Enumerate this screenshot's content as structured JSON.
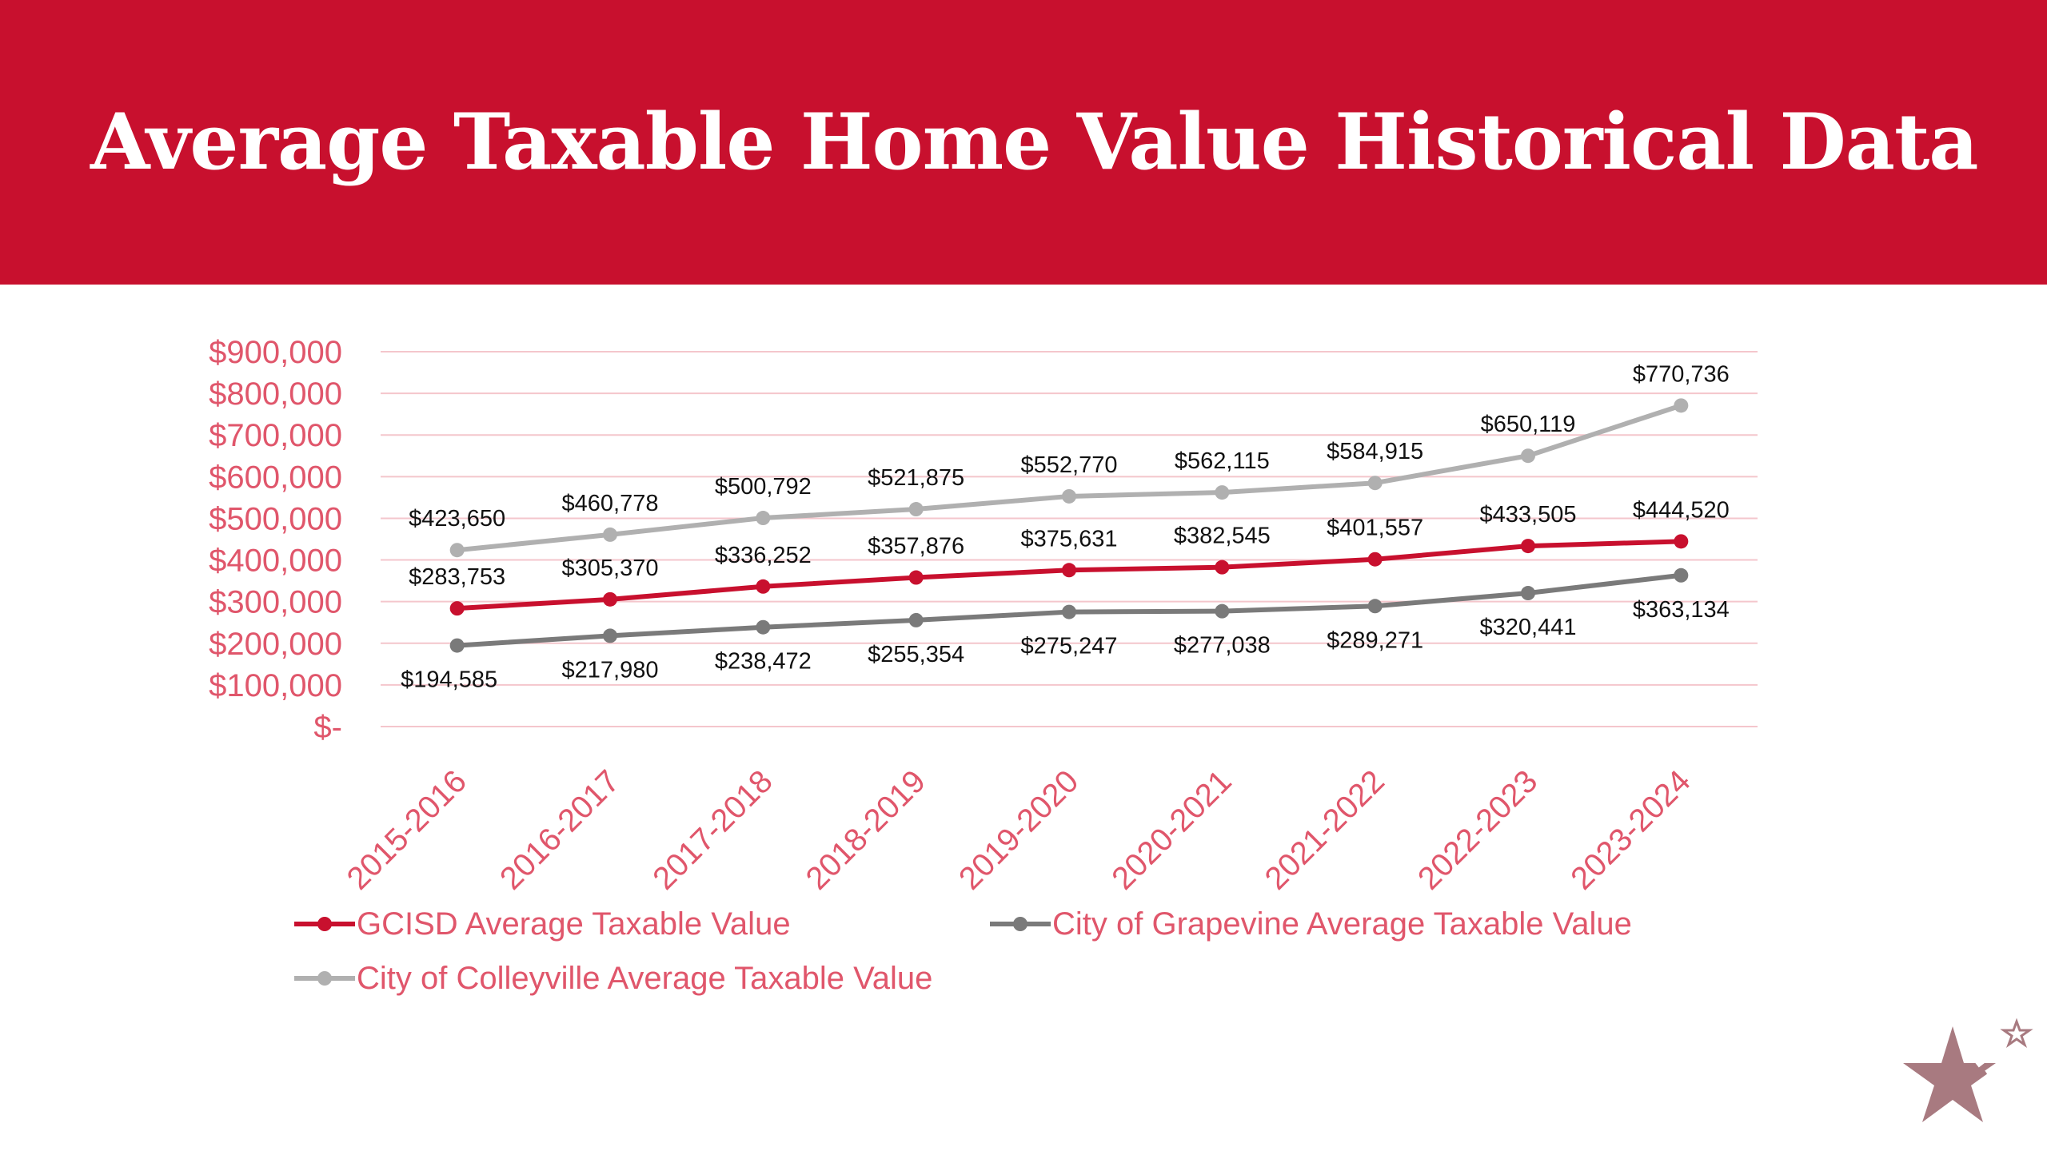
{
  "slide": {
    "title": "Average Taxable Home Value Historical Data"
  },
  "chart_data": {
    "type": "line",
    "title": "",
    "xlabel": "",
    "ylabel": "",
    "x": [
      "2015-2016",
      "2016-2017",
      "2017-2018",
      "2018-2019",
      "2019-2020",
      "2020-2021",
      "2021-2022",
      "2022-2023",
      "2023-2024"
    ],
    "ylim": [
      0,
      900000
    ],
    "yticks": [
      0,
      100000,
      200000,
      300000,
      400000,
      500000,
      600000,
      700000,
      800000,
      900000
    ],
    "ytick_labels": [
      "$-",
      "$100,000",
      "$200,000",
      "$300,000",
      "$400,000",
      "$500,000",
      "$600,000",
      "$700,000",
      "$800,000",
      "$900,000"
    ],
    "grid": true,
    "legend_position": "bottom",
    "series": [
      {
        "name": "GCISD Average Taxable Value",
        "color": "#c8102e",
        "values": [
          283753,
          305370,
          336252,
          357876,
          375631,
          382545,
          401557,
          433505,
          444520
        ],
        "labels": [
          "$283,753",
          "$305,370",
          "$336,252",
          "$357,876",
          "$375,631",
          "$382,545",
          "$401,557",
          "$433,505",
          "$444,520"
        ]
      },
      {
        "name": "City of Grapevine Average Taxable Value",
        "color": "#7a7a7a",
        "values": [
          194585,
          217980,
          238472,
          255354,
          275247,
          277038,
          289271,
          320441,
          363134
        ],
        "labels": [
          "$194,585",
          "$217,980",
          "$238,472",
          "$255,354",
          "$275,247",
          "$277,038",
          "$289,271",
          "$320,441",
          "$363,134"
        ]
      },
      {
        "name": "City of Colleyville Average Taxable Value",
        "color": "#b0b0b0",
        "values": [
          423650,
          460778,
          500792,
          521875,
          552770,
          562115,
          584915,
          650119,
          770736
        ],
        "labels": [
          "$423,650",
          "$460,778",
          "$500,792",
          "$521,875",
          "$552,770",
          "$562,115",
          "$584,915",
          "$650,119",
          "$770,736"
        ]
      }
    ]
  },
  "colors": {
    "header_bg": "#c8102e",
    "axis_text": "#e0566b",
    "gridline": "#f4c6cc"
  },
  "logo": {
    "icon": "shooting-star-icon"
  }
}
